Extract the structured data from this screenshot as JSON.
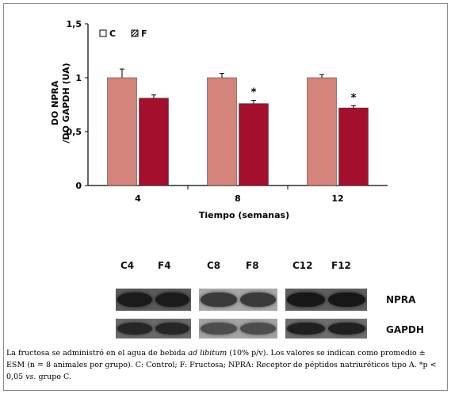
{
  "colors": {
    "C": "#d4847a",
    "F": "#a30f2d"
  },
  "chart_data": {
    "type": "bar",
    "categories": [
      "4",
      "8",
      "12"
    ],
    "series": [
      {
        "name": "C",
        "values": [
          1.0,
          1.0,
          1.0
        ],
        "errors": [
          0.08,
          0.04,
          0.03
        ]
      },
      {
        "name": "F",
        "values": [
          0.81,
          0.76,
          0.72
        ],
        "errors": [
          0.03,
          0.03,
          0.02
        ]
      }
    ],
    "significance": [
      "",
      "*",
      "*"
    ],
    "xlabel": "Tiempo (semanas)",
    "ylabel_line1": "DO NPRA",
    "ylabel_line2": "/DO GAPDH (UA)",
    "ylim": [
      0,
      1.5
    ],
    "yticks": [
      "0",
      "0,5",
      "1",
      "1,5"
    ],
    "legend_position": "top-left"
  },
  "blot": {
    "lanes": [
      "C4",
      "F4",
      "C8",
      "F8",
      "C12",
      "F12"
    ],
    "rows": [
      "NPRA",
      "GAPDH"
    ]
  },
  "caption": {
    "pre": "La fructosa se administró en el agua de bebida ",
    "italic1": "ad libitum",
    "mid": " (10% p/v). Los valores se indican como promedio ± ESM (n = 8 animales por grupo). C: Control; F: Fructosa; NPRA: Receptor de péptidos natriuréticos tipo A. *p < 0,05 ",
    "italic2": "vs.",
    "post": " grupo C."
  }
}
